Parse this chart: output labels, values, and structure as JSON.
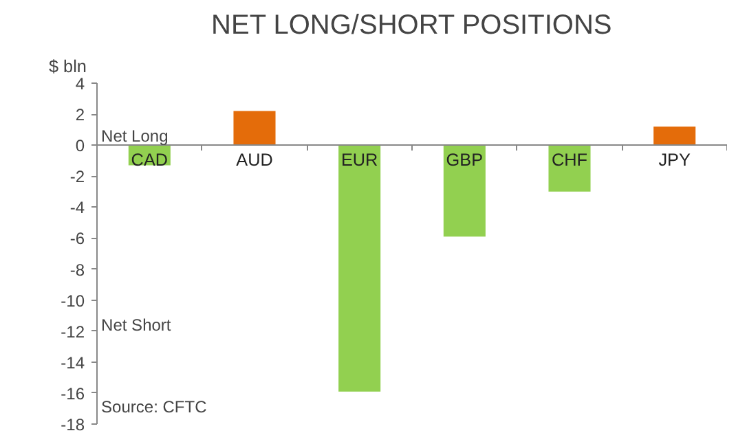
{
  "chart_data": {
    "type": "bar",
    "title": "NET LONG/SHORT POSITIONS",
    "ylabel": "$ bln",
    "categories": [
      "CAD",
      "AUD",
      "EUR",
      "GBP",
      "CHF",
      "JPY"
    ],
    "values": [
      -1.3,
      2.2,
      -15.9,
      -5.9,
      -3.0,
      1.2
    ],
    "colors": [
      "#92d050",
      "#e46c0a",
      "#92d050",
      "#92d050",
      "#92d050",
      "#e46c0a"
    ],
    "ylim": [
      -18,
      4
    ],
    "yticks": [
      4,
      2,
      0,
      -2,
      -4,
      -6,
      -8,
      -10,
      -12,
      -14,
      -16,
      -18
    ],
    "annotations": [
      "Net Long",
      "Net Short",
      "Source: CFTC"
    ],
    "grid": false
  }
}
